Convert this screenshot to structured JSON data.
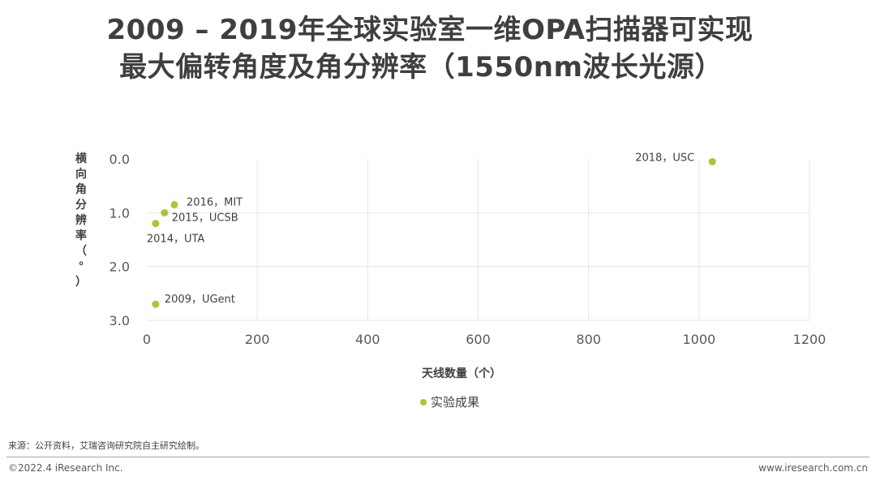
{
  "title": {
    "line1": "2009 – 2019年全球实验室一维OPA扫描器可实现",
    "line2": "最大偏转角度及角分辨率（1550nm波长光源）"
  },
  "chart_data": {
    "type": "scatter",
    "xlabel": "天线数量（个）",
    "ylabel": "横向角分辨率（°）",
    "xlim": [
      0,
      1200
    ],
    "ylim": [
      0.0,
      3.0
    ],
    "y_inverted": true,
    "x_ticks": [
      0,
      200,
      400,
      600,
      800,
      1000,
      1200
    ],
    "y_ticks": [
      0.0,
      1.0,
      2.0,
      3.0
    ],
    "x_tick_labels": [
      "0",
      "200",
      "400",
      "600",
      "800",
      "1000",
      "1200"
    ],
    "y_tick_labels": [
      "0.0",
      "1.0",
      "2.0",
      "3.0"
    ],
    "grid": true,
    "legend_position": "bottom",
    "series": [
      {
        "name": "实验成果",
        "color": "#a9c735",
        "points": [
          {
            "x": 16,
            "y": 2.7,
            "label": "2009，UGent"
          },
          {
            "x": 16,
            "y": 1.2,
            "label": "2014，UTA"
          },
          {
            "x": 32,
            "y": 1.0,
            "label": "2015，UCSB"
          },
          {
            "x": 50,
            "y": 0.85,
            "label": "2016，MIT"
          },
          {
            "x": 1024,
            "y": 0.05,
            "label": "2018，USC"
          }
        ]
      }
    ]
  },
  "footer": {
    "source": "来源：公开资料，艾瑞咨询研究院自主研究绘制。",
    "copyright": "©2022.4 iResearch Inc.",
    "url": "www.iresearch.com.cn"
  }
}
